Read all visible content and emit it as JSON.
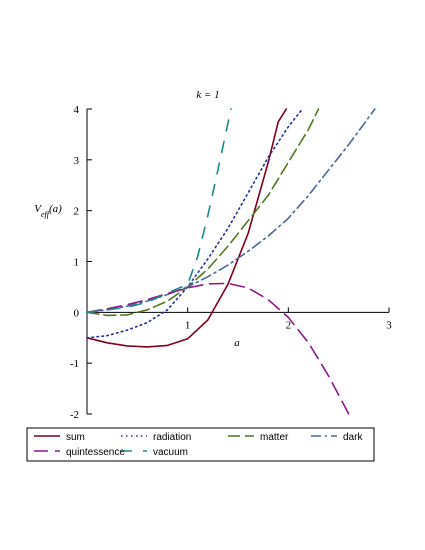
{
  "chart_data": {
    "type": "line",
    "title": "k = 1",
    "xlabel": "a",
    "ylabel": "V_eff(a)",
    "xlim": [
      0,
      3
    ],
    "ylim": [
      -2,
      4
    ],
    "x_ticks": [
      "1",
      "2",
      "3"
    ],
    "y_ticks": [
      "-2",
      "-1",
      "0",
      "1",
      "2",
      "3",
      "4"
    ],
    "series": [
      {
        "name": "sum",
        "color": "#800020",
        "dash": "solid",
        "x": [
          0,
          0.2,
          0.4,
          0.6,
          0.8,
          1.0,
          1.2,
          1.4,
          1.6,
          1.8,
          1.9,
          1.98
        ],
        "y": [
          -0.5,
          -0.6,
          -0.66,
          -0.68,
          -0.65,
          -0.52,
          -0.15,
          0.55,
          1.55,
          2.95,
          3.75,
          4.0
        ]
      },
      {
        "name": "radiation",
        "color": "#1f2fa0",
        "dash": "dot",
        "x": [
          0,
          0.2,
          0.4,
          0.6,
          0.8,
          1.0,
          1.2,
          1.4,
          1.6,
          1.8,
          2.0,
          2.14
        ],
        "y": [
          -0.5,
          -0.46,
          -0.35,
          -0.2,
          0.05,
          0.5,
          1.05,
          1.65,
          2.35,
          3.05,
          3.65,
          4.0
        ]
      },
      {
        "name": "matter",
        "color": "#4f7a1f",
        "dash": "longdash",
        "x": [
          0,
          0.2,
          0.4,
          0.6,
          0.8,
          1.0,
          1.2,
          1.4,
          1.6,
          1.8,
          2.0,
          2.2,
          2.3
        ],
        "y": [
          0,
          -0.06,
          -0.05,
          0.05,
          0.22,
          0.5,
          0.85,
          1.3,
          1.8,
          2.3,
          2.95,
          3.6,
          4.0
        ]
      },
      {
        "name": "dark",
        "color": "#4a6a9a",
        "dash": "dashdot",
        "x": [
          0,
          0.2,
          0.4,
          0.6,
          0.8,
          1.0,
          1.2,
          1.4,
          1.6,
          1.8,
          2.0,
          2.2,
          2.4,
          2.6,
          2.86
        ],
        "y": [
          0,
          0.05,
          0.12,
          0.22,
          0.35,
          0.5,
          0.7,
          0.93,
          1.2,
          1.5,
          1.85,
          2.3,
          2.8,
          3.3,
          4.0
        ]
      },
      {
        "name": "quintessence",
        "color": "#8b1a8b",
        "dash": "dash",
        "x": [
          0,
          0.2,
          0.4,
          0.6,
          0.8,
          1.0,
          1.2,
          1.4,
          1.6,
          1.8,
          2.0,
          2.2,
          2.4,
          2.6
        ],
        "y": [
          0,
          0.07,
          0.15,
          0.25,
          0.37,
          0.48,
          0.56,
          0.57,
          0.48,
          0.25,
          -0.1,
          -0.6,
          -1.25,
          -2.0
        ]
      },
      {
        "name": "vacuum",
        "color": "#1a8a8a",
        "dash": "medium",
        "x": [
          0,
          0.2,
          0.4,
          0.6,
          0.8,
          1.0,
          1.1,
          1.2,
          1.3,
          1.43
        ],
        "y": [
          0,
          0.05,
          0.1,
          0.2,
          0.38,
          0.55,
          1.1,
          1.9,
          2.8,
          4.0
        ]
      }
    ],
    "legend": {
      "placement": "bottom",
      "rows": [
        [
          "sum",
          "radiation",
          "matter",
          "dark"
        ],
        [
          "quintessence",
          "vacuum"
        ]
      ]
    },
    "grid": false
  }
}
